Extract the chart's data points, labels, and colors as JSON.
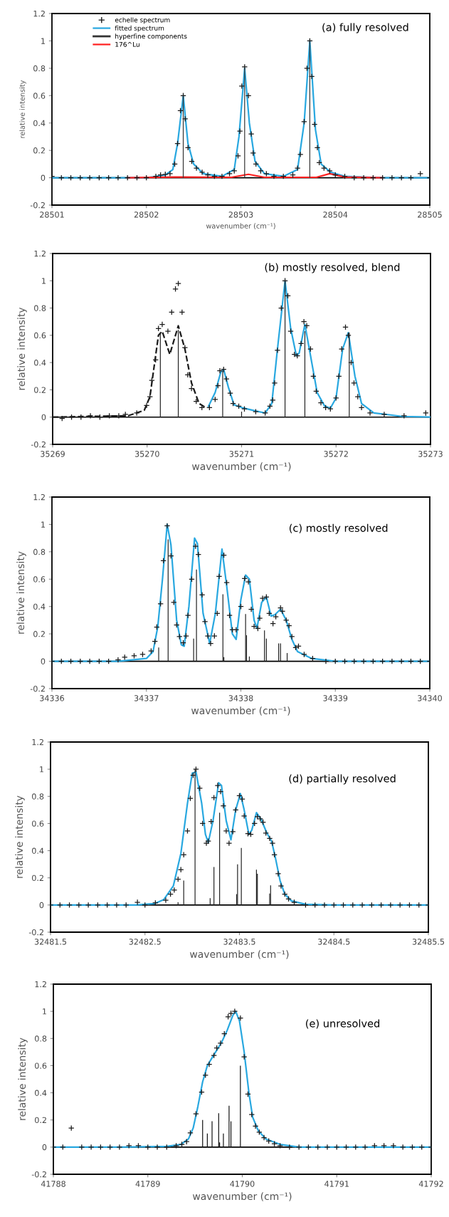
{
  "chart_data": [
    {
      "type": "scatter",
      "title": "(a) fully resolved",
      "xlabel": "wavenumber (cm⁻¹)",
      "ylabel": "relative intensity",
      "xlim": [
        28501,
        28505
      ],
      "xticks": [
        28501,
        28502,
        28503,
        28504,
        28505
      ],
      "ylim": [
        -0.2,
        1.2
      ],
      "yticks": [
        -0.2,
        0,
        0.2,
        0.4,
        0.6,
        0.8,
        1,
        1.2
      ],
      "legend": "top left",
      "ref_lines": [
        {
          "axis": "y",
          "value": 0,
          "color": "#000000"
        }
      ],
      "series": [
        {
          "name": "echelle spectrum",
          "marker": "cross",
          "color": "#1a1a1a",
          "x": [
            28501.0,
            28501.1,
            28501.2,
            28501.3,
            28501.4,
            28501.5,
            28501.6,
            28501.7,
            28501.8,
            28501.9,
            28502.0,
            28502.1,
            28502.15,
            28502.2,
            28502.25,
            28502.3,
            28502.33,
            28502.36,
            28502.39,
            28502.41,
            28502.44,
            28502.48,
            28502.53,
            28502.59,
            28502.65,
            28502.72,
            28502.8,
            28502.88,
            28502.93,
            28502.97,
            28502.99,
            28503.01,
            28503.04,
            28503.08,
            28503.11,
            28503.13,
            28503.16,
            28503.21,
            28503.27,
            28503.35,
            28503.45,
            28503.55,
            28503.6,
            28503.63,
            28503.67,
            28503.7,
            28503.73,
            28503.75,
            28503.78,
            28503.81,
            28503.83,
            28503.88,
            28503.94,
            28504.0,
            28504.1,
            28504.2,
            28504.3,
            28504.4,
            28504.5,
            28504.6,
            28504.7,
            28504.8,
            28504.9,
            28505.0
          ],
          "values": [
            0.01,
            0,
            0,
            0,
            0,
            0,
            0,
            0,
            0,
            0,
            0,
            0.01,
            0.02,
            0.025,
            0.03,
            0.1,
            0.25,
            0.49,
            0.6,
            0.43,
            0.22,
            0.12,
            0.07,
            0.04,
            0.02,
            0.01,
            0.01,
            0.03,
            0.05,
            0.16,
            0.34,
            0.67,
            0.81,
            0.6,
            0.32,
            0.18,
            0.1,
            0.05,
            0.03,
            0.01,
            0.01,
            0.02,
            0.07,
            0.17,
            0.41,
            0.8,
            1.0,
            0.74,
            0.39,
            0.22,
            0.11,
            0.07,
            0.05,
            0.02,
            0.01,
            0,
            0,
            0,
            0,
            0,
            0,
            0,
            0.03,
            0
          ]
        },
        {
          "name": "fitted spectrum",
          "type": "line",
          "color": "#29a8e0",
          "x": [
            28501,
            28502.0,
            28502.2,
            28502.28,
            28502.33,
            28502.39,
            28502.44,
            28502.5,
            28502.6,
            28502.8,
            28502.93,
            28502.98,
            28503.04,
            28503.09,
            28503.15,
            28503.25,
            28503.45,
            28503.6,
            28503.67,
            28503.73,
            28503.79,
            28503.85,
            28503.95,
            28504.1,
            28504.5,
            28505
          ],
          "values": [
            0,
            0,
            0.02,
            0.06,
            0.25,
            0.6,
            0.25,
            0.1,
            0.03,
            0.01,
            0.06,
            0.3,
            0.8,
            0.4,
            0.12,
            0.03,
            0.01,
            0.06,
            0.4,
            1.0,
            0.35,
            0.1,
            0.04,
            0.01,
            0,
            0
          ]
        },
        {
          "name": "hyperfine components",
          "type": "bar",
          "color": "#333333",
          "x": [
            28502.39,
            28503.04,
            28503.73
          ],
          "values": [
            0.6,
            0.8,
            1.0
          ]
        },
        {
          "name": "176^Lu",
          "type": "line",
          "color": "#ff2020",
          "x": [
            28501.8,
            28502.3,
            28502.9,
            28503.08,
            28503.25,
            28503.8,
            28503.94,
            28504.1,
            28504.5
          ],
          "values": [
            0,
            0.005,
            0.003,
            0.025,
            0.003,
            0.003,
            0.03,
            0.005,
            0
          ]
        }
      ]
    },
    {
      "type": "scatter",
      "title": "(b) mostly resolved, blend",
      "xlabel": "wavenumber (cm⁻¹)",
      "ylabel": "relative intensity",
      "xlim": [
        35269,
        35273
      ],
      "xticks": [
        35269,
        35270,
        35271,
        35272,
        35273
      ],
      "ylim": [
        -0.2,
        1.2
      ],
      "yticks": [
        -0.2,
        0,
        0.2,
        0.4,
        0.6,
        0.8,
        1,
        1.2
      ],
      "ref_lines": [
        {
          "axis": "y",
          "value": 0,
          "color": "#000000"
        }
      ],
      "series": [
        {
          "marker": "cross",
          "color": "#1a1a1a",
          "x": [
            35269.0,
            35269.1,
            35269.2,
            35269.3,
            35269.4,
            35269.5,
            35269.6,
            35269.7,
            35269.77,
            35269.89,
            35269.995,
            35270.03,
            35270.05,
            35270.09,
            35270.12,
            35270.16,
            35270.22,
            35270.26,
            35270.3,
            35270.33,
            35270.37,
            35270.4,
            35270.43,
            35270.47,
            35270.52,
            35270.58,
            35270.66,
            35270.72,
            35270.75,
            35270.77,
            35270.81,
            35270.84,
            35270.88,
            35270.91,
            35270.97,
            35271.03,
            35271.15,
            35271.25,
            35271.3,
            35271.33,
            35271.35,
            35271.38,
            35271.42,
            35271.46,
            35271.49,
            35271.52,
            35271.56,
            35271.59,
            35271.63,
            35271.66,
            35271.69,
            35271.73,
            35271.76,
            35271.79,
            35271.84,
            35271.89,
            35271.94,
            35272.0,
            35272.03,
            35272.06,
            35272.1,
            35272.13,
            35272.16,
            35272.19,
            35272.23,
            35272.27,
            35272.36,
            35272.51,
            35272.72,
            35272.95
          ],
          "values": [
            0,
            -0.01,
            0,
            0,
            0.01,
            0,
            0.01,
            0.01,
            0.02,
            0.03,
            0.085,
            0.15,
            0.27,
            0.42,
            0.65,
            0.68,
            0.63,
            0.77,
            0.94,
            0.98,
            0.77,
            0.51,
            0.31,
            0.21,
            0.115,
            0.07,
            0.07,
            0.13,
            0.23,
            0.34,
            0.35,
            0.28,
            0.175,
            0.1,
            0.08,
            0.06,
            0.04,
            0.03,
            0.08,
            0.125,
            0.25,
            0.49,
            0.8,
            1.0,
            0.89,
            0.63,
            0.46,
            0.45,
            0.54,
            0.7,
            0.67,
            0.5,
            0.3,
            0.19,
            0.105,
            0.07,
            0.06,
            0.14,
            0.3,
            0.5,
            0.66,
            0.6,
            0.4,
            0.25,
            0.15,
            0.07,
            0.03,
            0.02,
            0.01,
            0.03
          ]
        },
        {
          "type": "line",
          "line_style": "dashed",
          "color": "#1a1a1a",
          "x": [
            35269,
            35269.8,
            35269.97,
            35270.03,
            35270.07,
            35270.12,
            35270.16,
            35270.24,
            35270.33,
            35270.4,
            35270.47,
            35270.55,
            35270.62
          ],
          "values": [
            0,
            0.01,
            0.05,
            0.15,
            0.35,
            0.6,
            0.63,
            0.46,
            0.67,
            0.5,
            0.25,
            0.1,
            0.07
          ]
        },
        {
          "type": "line",
          "color": "#29a8e0",
          "x": [
            35270.65,
            35270.72,
            35270.78,
            35270.81,
            35270.86,
            35270.92,
            35271.0,
            35271.15,
            35271.25,
            35271.32,
            35271.38,
            35271.46,
            35271.52,
            35271.58,
            35271.61,
            35271.67,
            35271.73,
            35271.8,
            35271.88,
            35271.94,
            35272.0,
            35272.07,
            35272.13,
            35272.2,
            35272.27,
            35272.4,
            35272.7,
            35273
          ],
          "values": [
            0.08,
            0.18,
            0.33,
            0.35,
            0.22,
            0.09,
            0.07,
            0.045,
            0.03,
            0.1,
            0.5,
            1.0,
            0.65,
            0.45,
            0.47,
            0.68,
            0.45,
            0.18,
            0.08,
            0.065,
            0.14,
            0.5,
            0.62,
            0.3,
            0.1,
            0.03,
            0.005,
            0
          ]
        },
        {
          "type": "bar",
          "color": "#222222",
          "x": [
            35270.14,
            35270.33,
            35270.8,
            35271.0,
            35271.46,
            35271.67,
            35272.14
          ],
          "values": [
            0.62,
            0.64,
            0.34,
            0.04,
            1.0,
            0.63,
            0.62
          ]
        }
      ]
    },
    {
      "type": "scatter",
      "title": "(c) mostly resolved",
      "xlabel": "wavenumber (cm⁻¹)",
      "ylabel": "relative intensity",
      "xlim": [
        34336,
        34340
      ],
      "xticks": [
        34336,
        34337,
        34338,
        34339,
        34340
      ],
      "ylim": [
        -0.2,
        1.2
      ],
      "yticks": [
        -0.2,
        0,
        0.2,
        0.4,
        0.6,
        0.8,
        1,
        1.2
      ],
      "ref_lines": [
        {
          "axis": "y",
          "value": 0,
          "color": "#000000"
        }
      ],
      "series": [
        {
          "marker": "cross",
          "color": "#1a1a1a",
          "x": [
            34336.0,
            34336.1,
            34336.2,
            34336.3,
            34336.4,
            34336.5,
            34336.6,
            34336.7,
            34336.77,
            34336.87,
            34336.96,
            34337.05,
            34337.09,
            34337.11,
            34337.15,
            34337.18,
            34337.22,
            34337.26,
            34337.29,
            34337.32,
            34337.35,
            34337.39,
            34337.42,
            34337.44,
            34337.48,
            34337.52,
            34337.55,
            34337.59,
            34337.62,
            34337.65,
            34337.68,
            34337.72,
            34337.75,
            34337.77,
            34337.82,
            34337.85,
            34337.88,
            34337.91,
            34337.95,
            34338.0,
            34338.04,
            34338.08,
            34338.11,
            34338.14,
            34338.18,
            34338.2,
            34338.23,
            34338.27,
            34338.3,
            34338.34,
            34338.37,
            34338.42,
            34338.44,
            34338.48,
            34338.51,
            34338.54,
            34338.58,
            34338.61,
            34338.67,
            34338.76,
            34338.9,
            34339.0,
            34339.1,
            34339.2,
            34339.3,
            34339.4,
            34339.5,
            34339.6,
            34339.7,
            34339.8,
            34339.9,
            34340.0
          ],
          "values": [
            0,
            0,
            0,
            0,
            0,
            0,
            0,
            0.01,
            0.03,
            0.04,
            0.05,
            0.075,
            0.145,
            0.25,
            0.42,
            0.735,
            0.99,
            0.77,
            0.43,
            0.265,
            0.18,
            0.135,
            0.185,
            0.335,
            0.6,
            0.84,
            0.78,
            0.485,
            0.29,
            0.185,
            0.13,
            0.185,
            0.35,
            0.62,
            0.775,
            0.575,
            0.335,
            0.23,
            0.23,
            0.4,
            0.605,
            0.58,
            0.38,
            0.255,
            0.24,
            0.315,
            0.46,
            0.47,
            0.35,
            0.275,
            0.325,
            0.39,
            0.365,
            0.3,
            0.26,
            0.18,
            0.1,
            0.11,
            0.05,
            0.02,
            0,
            0,
            0,
            0,
            0,
            0,
            0,
            0,
            0,
            0,
            0,
            0
          ]
        },
        {
          "type": "line",
          "color": "#29a8e0",
          "x": [
            34336,
            34336.7,
            34337.0,
            34337.07,
            34337.12,
            34337.17,
            34337.22,
            34337.26,
            34337.32,
            34337.37,
            34337.4,
            34337.45,
            34337.51,
            34337.54,
            34337.6,
            34337.67,
            34337.73,
            34337.8,
            34337.85,
            34337.91,
            34337.95,
            34338.0,
            34338.05,
            34338.09,
            34338.14,
            34338.17,
            34338.22,
            34338.27,
            34338.32,
            34338.36,
            34338.42,
            34338.48,
            34338.54,
            34338.6,
            34338.75,
            34339,
            34340
          ],
          "values": [
            0,
            0,
            0.02,
            0.07,
            0.25,
            0.6,
            1.0,
            0.85,
            0.3,
            0.12,
            0.11,
            0.4,
            0.9,
            0.86,
            0.35,
            0.13,
            0.35,
            0.82,
            0.55,
            0.2,
            0.16,
            0.45,
            0.63,
            0.6,
            0.3,
            0.24,
            0.43,
            0.47,
            0.33,
            0.34,
            0.38,
            0.3,
            0.16,
            0.07,
            0.02,
            0,
            0
          ]
        },
        {
          "type": "bar",
          "color": "#222222",
          "x": [
            34337.13,
            34337.23,
            34337.5,
            34337.53,
            34337.81,
            34337.82,
            34338.05,
            34338.06,
            34338.09,
            34338.25,
            34338.27,
            34338.4,
            34338.42,
            34338.49
          ],
          "values": [
            0.1,
            0.89,
            0.165,
            0.67,
            0.49,
            0.03,
            0.345,
            0.19,
            0.035,
            0.225,
            0.165,
            0.13,
            0.13,
            0.06
          ]
        }
      ]
    },
    {
      "type": "scatter",
      "title": "(d) partially resolved",
      "xlabel": "wavenumber (cm⁻¹)",
      "ylabel": "relative intensity",
      "xlim": [
        32481.5,
        32485.5
      ],
      "xticks": [
        32481.5,
        32482.5,
        32483.5,
        32484.5,
        32485.5
      ],
      "ylim": [
        -0.2,
        1.2
      ],
      "yticks": [
        -0.2,
        0,
        0.2,
        0.4,
        0.6,
        0.8,
        1,
        1.2
      ],
      "ref_lines": [
        {
          "axis": "y",
          "value": 0,
          "color": "#000000"
        }
      ],
      "series": [
        {
          "marker": "cross",
          "color": "#1a1a1a",
          "x": [
            32481.5,
            32481.6,
            32481.7,
            32481.8,
            32481.9,
            32482.0,
            32482.1,
            32482.2,
            32482.3,
            32482.42,
            32482.5,
            32482.61,
            32482.72,
            32482.77,
            32482.81,
            32482.85,
            32482.88,
            32482.91,
            32482.95,
            32482.98,
            32483.01,
            32483.04,
            32483.08,
            32483.11,
            32483.15,
            32483.17,
            32483.2,
            32483.23,
            32483.27,
            32483.3,
            32483.33,
            32483.36,
            32483.39,
            32483.43,
            32483.46,
            32483.5,
            32483.53,
            32483.55,
            32483.59,
            32483.62,
            32483.66,
            32483.69,
            32483.72,
            32483.75,
            32483.78,
            32483.82,
            32483.85,
            32483.87,
            32483.91,
            32483.94,
            32483.98,
            32484.02,
            32484.08,
            32484.2,
            32484.3,
            32484.4,
            32484.5,
            32484.6,
            32484.7,
            32484.8,
            32484.9,
            32485.0,
            32485.1,
            32485.2,
            32485.3,
            32485.4,
            32485.5
          ],
          "values": [
            0,
            0,
            0,
            0,
            0,
            0,
            0,
            0,
            0,
            0.02,
            0,
            0.015,
            0.035,
            0.08,
            0.11,
            0.19,
            0.26,
            0.37,
            0.545,
            0.785,
            0.955,
            1.0,
            0.86,
            0.6,
            0.455,
            0.47,
            0.615,
            0.79,
            0.88,
            0.835,
            0.73,
            0.545,
            0.455,
            0.54,
            0.7,
            0.805,
            0.78,
            0.655,
            0.525,
            0.52,
            0.6,
            0.65,
            0.635,
            0.61,
            0.53,
            0.49,
            0.455,
            0.37,
            0.23,
            0.14,
            0.08,
            0.045,
            0.02,
            0,
            0,
            0,
            0,
            0,
            0,
            0,
            0,
            0,
            0,
            0,
            0,
            0,
            0
          ]
        },
        {
          "type": "line",
          "color": "#29a8e0",
          "x": [
            32481.5,
            32482.4,
            32482.6,
            32482.7,
            32482.8,
            32482.88,
            32482.95,
            32483.0,
            32483.04,
            32483.1,
            32483.14,
            32483.17,
            32483.22,
            32483.28,
            32483.31,
            32483.36,
            32483.41,
            32483.46,
            32483.51,
            32483.55,
            32483.6,
            32483.63,
            32483.68,
            32483.73,
            32483.79,
            32483.84,
            32483.88,
            32483.93,
            32483.98,
            32484.05,
            32484.2,
            32484.5,
            32485.5
          ],
          "values": [
            0,
            0,
            0.01,
            0.04,
            0.14,
            0.38,
            0.75,
            0.97,
            0.98,
            0.75,
            0.52,
            0.46,
            0.62,
            0.9,
            0.88,
            0.62,
            0.48,
            0.7,
            0.82,
            0.7,
            0.52,
            0.55,
            0.68,
            0.63,
            0.53,
            0.47,
            0.35,
            0.18,
            0.08,
            0.03,
            0.005,
            0,
            0
          ]
        },
        {
          "type": "bar",
          "color": "#222222",
          "x": [
            32482.85,
            32482.91,
            32483.03,
            32483.19,
            32483.23,
            32483.29,
            32483.47,
            32483.48,
            32483.52,
            32483.68,
            32483.69,
            32483.82,
            32483.83
          ],
          "values": [
            0.02,
            0.18,
            1.0,
            0.05,
            0.28,
            0.68,
            0.08,
            0.3,
            0.42,
            0.26,
            0.23,
            0.085,
            0.145
          ]
        }
      ]
    },
    {
      "type": "scatter",
      "title": "(e) unresolved",
      "xlabel": "wavenumber (cm⁻¹)",
      "ylabel": "relative intensity",
      "xlim": [
        41788,
        41792
      ],
      "xticks": [
        41788,
        41789,
        41790,
        41791,
        41792
      ],
      "ylim": [
        -0.2,
        1.2
      ],
      "yticks": [
        -0.2,
        0,
        0.2,
        0.4,
        0.6,
        0.8,
        1,
        1.2
      ],
      "ref_lines": [
        {
          "axis": "y",
          "value": 0,
          "color": "#000000"
        }
      ],
      "series": [
        {
          "marker": "cross",
          "color": "#1a1a1a",
          "x": [
            41788.0,
            41788.1,
            41788.19,
            41788.3,
            41788.4,
            41788.5,
            41788.6,
            41788.7,
            41788.8,
            41788.9,
            41789.0,
            41789.1,
            41789.2,
            41789.3,
            41789.36,
            41789.41,
            41789.45,
            41789.51,
            41789.57,
            41789.61,
            41789.65,
            41789.7,
            41789.73,
            41789.77,
            41789.81,
            41789.85,
            41789.88,
            41789.92,
            41789.98,
            41790.02,
            41790.06,
            41790.1,
            41790.14,
            41790.18,
            41790.23,
            41790.28,
            41790.34,
            41790.4,
            41790.5,
            41790.6,
            41790.7,
            41790.8,
            41790.9,
            41791.0,
            41791.1,
            41791.2,
            41791.3,
            41791.4,
            41791.5,
            41791.6,
            41791.7,
            41791.8,
            41791.9,
            41792.0
          ],
          "values": [
            0,
            0,
            0.14,
            0,
            0,
            0,
            0,
            0,
            0.01,
            0.01,
            0,
            0,
            0,
            0.01,
            0.02,
            0.04,
            0.105,
            0.245,
            0.405,
            0.53,
            0.61,
            0.675,
            0.73,
            0.765,
            0.835,
            0.96,
            0.985,
            1.0,
            0.95,
            0.665,
            0.39,
            0.24,
            0.155,
            0.11,
            0.07,
            0.045,
            0.025,
            0.01,
            0,
            0,
            0,
            0,
            0,
            0,
            0,
            0,
            0,
            0.01,
            0.01,
            0.01,
            0,
            0,
            0,
            0
          ]
        },
        {
          "type": "line",
          "color": "#29a8e0",
          "x": [
            41788,
            41788.7,
            41789.2,
            41789.35,
            41789.43,
            41789.48,
            41789.53,
            41789.58,
            41789.63,
            41789.7,
            41789.78,
            41789.84,
            41789.9,
            41789.93,
            41789.97,
            41790.02,
            41790.07,
            41790.11,
            41790.17,
            41790.25,
            41790.4,
            41790.6,
            41792
          ],
          "values": [
            0,
            0,
            0.005,
            0.02,
            0.06,
            0.14,
            0.3,
            0.48,
            0.6,
            0.68,
            0.77,
            0.86,
            0.97,
            1.0,
            0.93,
            0.7,
            0.4,
            0.22,
            0.12,
            0.06,
            0.02,
            0,
            0
          ]
        },
        {
          "type": "bar",
          "color": "#111111",
          "x": [
            41789.58,
            41789.63,
            41789.68,
            41789.75,
            41789.76,
            41789.8,
            41789.86,
            41789.88,
            41789.98
          ],
          "values": [
            0.2,
            0.1,
            0.19,
            0.25,
            0.035,
            0.1,
            0.305,
            0.19,
            0.6
          ]
        }
      ]
    }
  ]
}
